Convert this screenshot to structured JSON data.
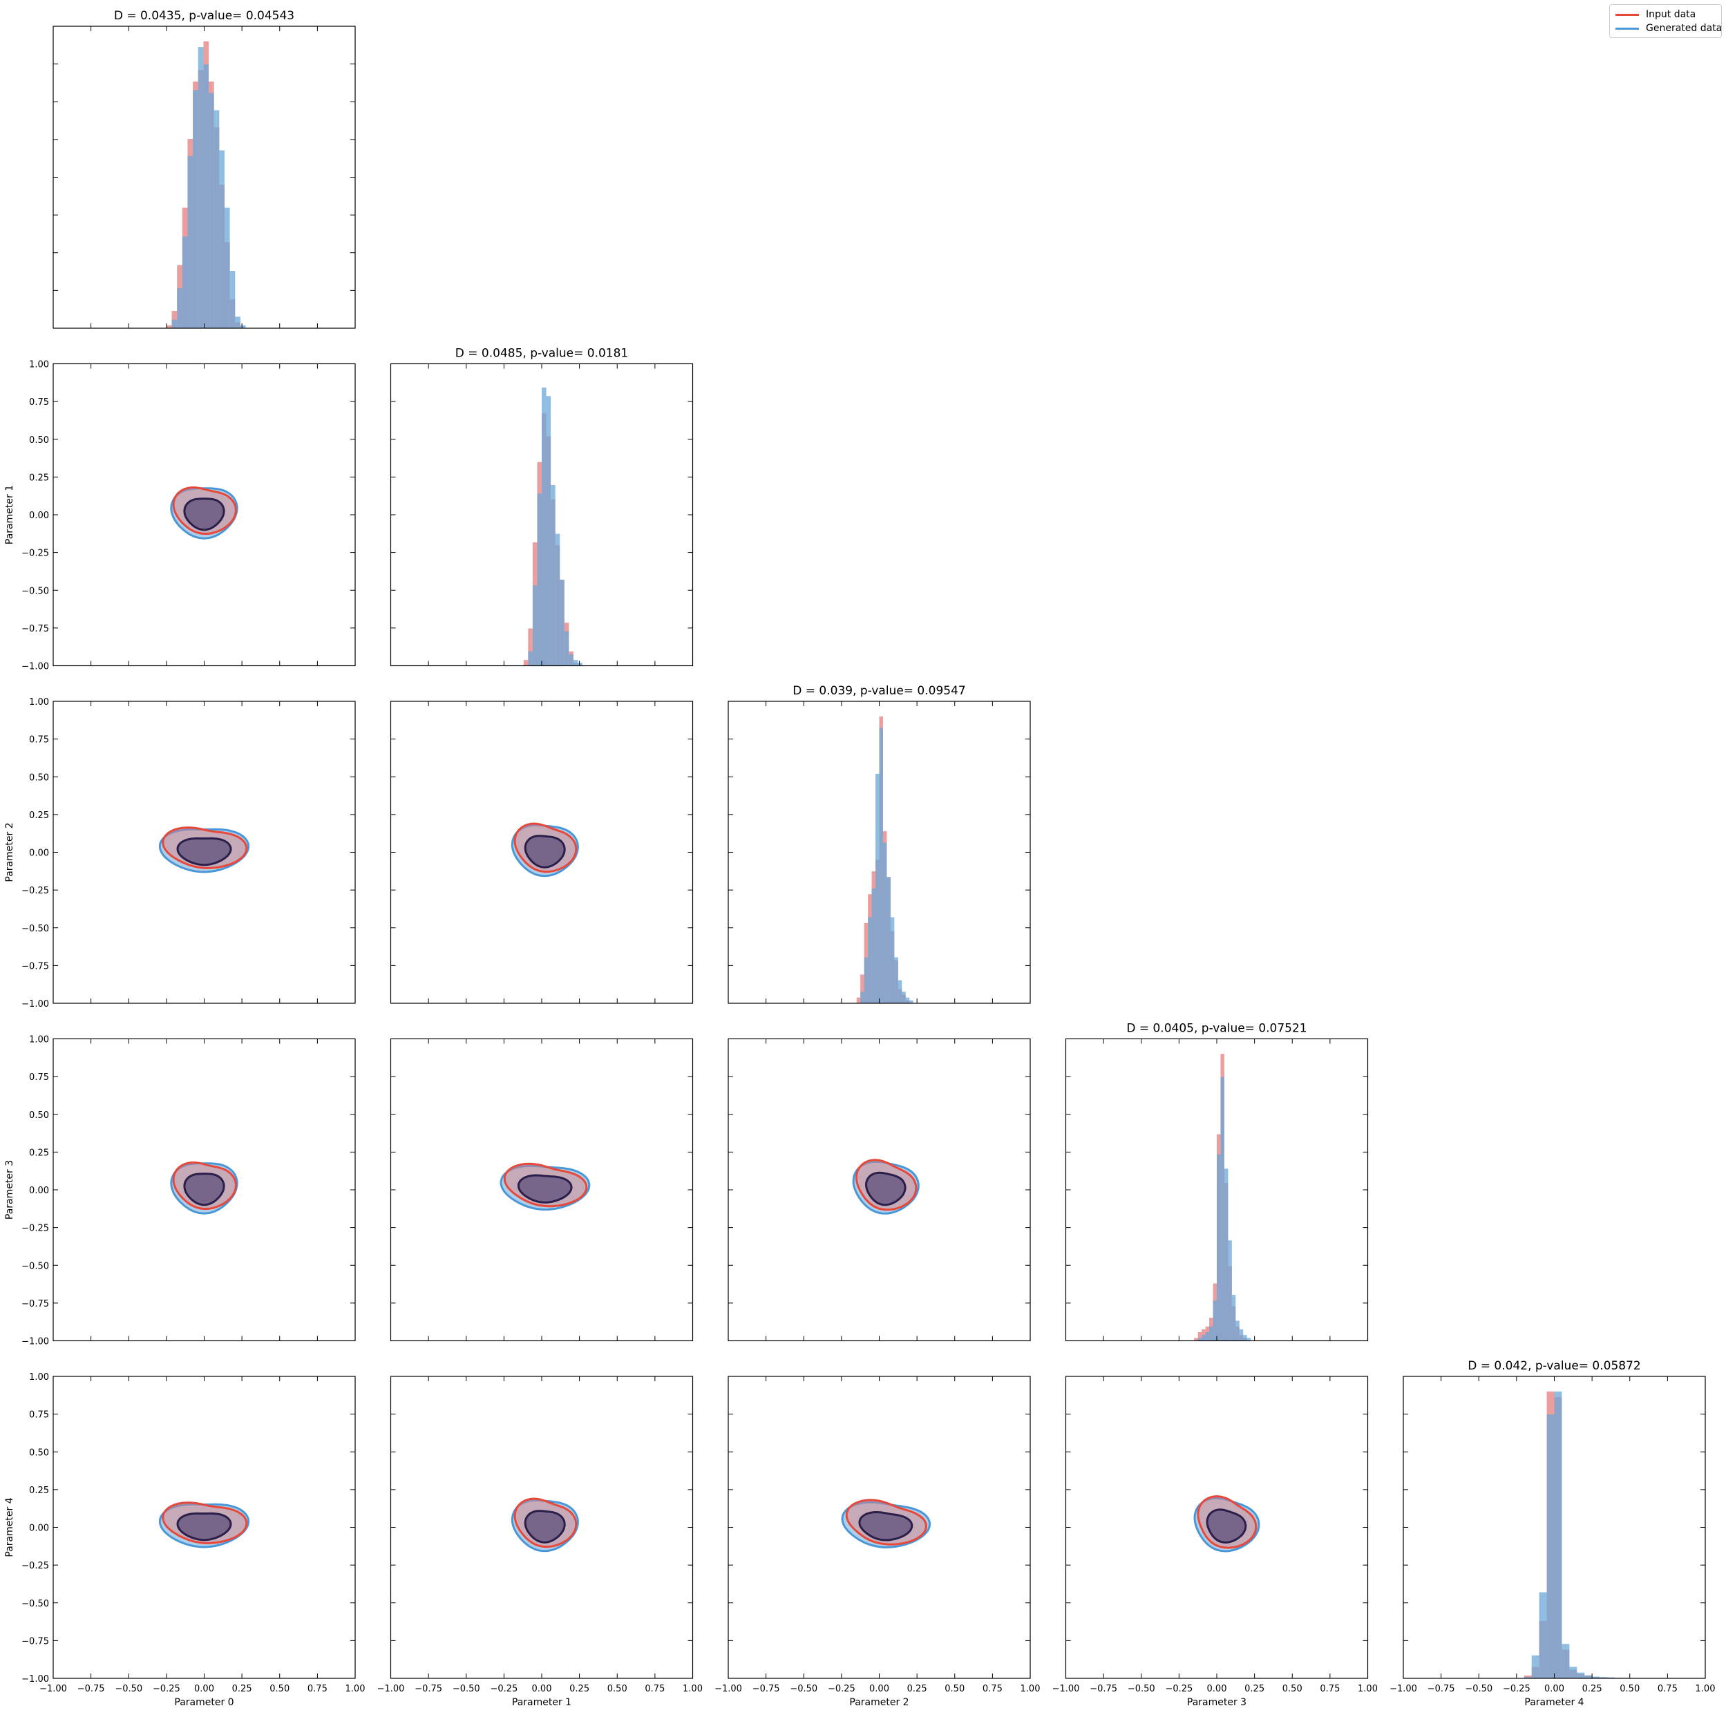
{
  "chart_data": {
    "type": "corner",
    "parameters": [
      "Parameter 0",
      "Parameter 1",
      "Parameter 2",
      "Parameter 3",
      "Parameter 4"
    ],
    "axis_range": [
      -1.0,
      1.0
    ],
    "tick_labels": [
      "−1.00",
      "−0.75",
      "−0.50",
      "−0.25",
      "0.00",
      "0.25",
      "0.50",
      "0.75",
      "1.00"
    ],
    "tick_values": [
      -1.0,
      -0.75,
      -0.5,
      -0.25,
      0.0,
      0.25,
      0.5,
      0.75,
      1.0
    ],
    "grid": false,
    "legend_position": "top-right",
    "series": [
      {
        "name": "Input data",
        "color": "#e8483a",
        "fill": "#e67c7c"
      },
      {
        "name": "Generated data",
        "color": "#4a97d8",
        "fill": "#6aa8d8"
      }
    ],
    "overlap_color": "#8a80a0",
    "diagonal_titles": [
      "D = 0.0435, p-value= 0.04543",
      "D = 0.0485, p-value= 0.0181",
      "D = 0.039, p-value= 0.09547",
      "D = 0.0405, p-value= 0.07521",
      "D = 0.042, p-value= 0.05872"
    ],
    "diagonal_histograms": [
      {
        "bin_width": 0.035,
        "bins_x": [
          -0.25,
          -0.215,
          -0.18,
          -0.145,
          -0.11,
          -0.075,
          -0.04,
          -0.005,
          0.03,
          0.065,
          0.1,
          0.135,
          0.17,
          0.205,
          0.24
        ],
        "input": [
          0.01,
          0.06,
          0.22,
          0.42,
          0.66,
          0.86,
          0.9,
          1.0,
          0.86,
          0.7,
          0.5,
          0.3,
          0.1,
          0.02,
          0.0
        ],
        "generated": [
          0.0,
          0.03,
          0.14,
          0.32,
          0.6,
          0.83,
          0.98,
          0.92,
          0.82,
          0.76,
          0.62,
          0.42,
          0.2,
          0.04,
          0.01
        ]
      },
      {
        "bin_width": 0.03,
        "bins_x": [
          -0.12,
          -0.09,
          -0.06,
          -0.03,
          0.0,
          0.03,
          0.06,
          0.09,
          0.12,
          0.15,
          0.18,
          0.21,
          0.24,
          0.27
        ],
        "input": [
          0.02,
          0.13,
          0.43,
          0.71,
          0.88,
          0.8,
          0.58,
          0.42,
          0.3,
          0.15,
          0.05,
          0.01,
          0.0,
          0.0
        ],
        "generated": [
          0.0,
          0.05,
          0.28,
          0.6,
          0.97,
          0.94,
          0.63,
          0.46,
          0.3,
          0.12,
          0.04,
          0.02,
          0.01,
          0.0
        ]
      },
      {
        "bin_width": 0.025,
        "bins_x": [
          -0.15,
          -0.125,
          -0.1,
          -0.075,
          -0.05,
          -0.025,
          0.0,
          0.025,
          0.05,
          0.075,
          0.1,
          0.125,
          0.15,
          0.175,
          0.2,
          0.225
        ],
        "input": [
          0.02,
          0.1,
          0.28,
          0.38,
          0.46,
          0.5,
          1.0,
          0.6,
          0.44,
          0.25,
          0.15,
          0.05,
          0.03,
          0.01,
          0.0,
          0.0
        ],
        "generated": [
          0.0,
          0.04,
          0.16,
          0.3,
          0.4,
          0.8,
          0.96,
          0.56,
          0.44,
          0.3,
          0.16,
          0.08,
          0.04,
          0.02,
          0.01,
          0.0
        ]
      },
      {
        "bin_width": 0.025,
        "bins_x": [
          -0.15,
          -0.125,
          -0.1,
          -0.075,
          -0.05,
          -0.025,
          0.0,
          0.025,
          0.05,
          0.075,
          0.1,
          0.125,
          0.15,
          0.175,
          0.2,
          0.225
        ],
        "input": [
          0.01,
          0.03,
          0.04,
          0.05,
          0.08,
          0.2,
          0.72,
          1.0,
          0.55,
          0.26,
          0.12,
          0.05,
          0.02,
          0.01,
          0.0,
          0.0
        ],
        "generated": [
          0.0,
          0.01,
          0.02,
          0.03,
          0.05,
          0.14,
          0.65,
          0.92,
          0.6,
          0.35,
          0.16,
          0.07,
          0.04,
          0.02,
          0.01,
          0.0
        ]
      },
      {
        "bin_width": 0.05,
        "bins_x": [
          -0.2,
          -0.15,
          -0.1,
          -0.05,
          0.0,
          0.05,
          0.1,
          0.15,
          0.2,
          0.25,
          0.3,
          0.35,
          0.4,
          0.45,
          0.5
        ],
        "input": [
          0.01,
          0.04,
          0.2,
          1.0,
          0.98,
          0.1,
          0.03,
          0.015,
          0.01,
          0.005,
          0.004,
          0.003,
          0.002,
          0.001,
          0.0
        ],
        "generated": [
          0.005,
          0.08,
          0.3,
          0.92,
          1.0,
          0.12,
          0.04,
          0.02,
          0.01,
          0.006,
          0.004,
          0.003,
          0.002,
          0.002,
          0.001
        ]
      }
    ],
    "contour_levels": [
      1,
      2
    ],
    "contour_center": [
      0.0,
      0.02
    ]
  }
}
